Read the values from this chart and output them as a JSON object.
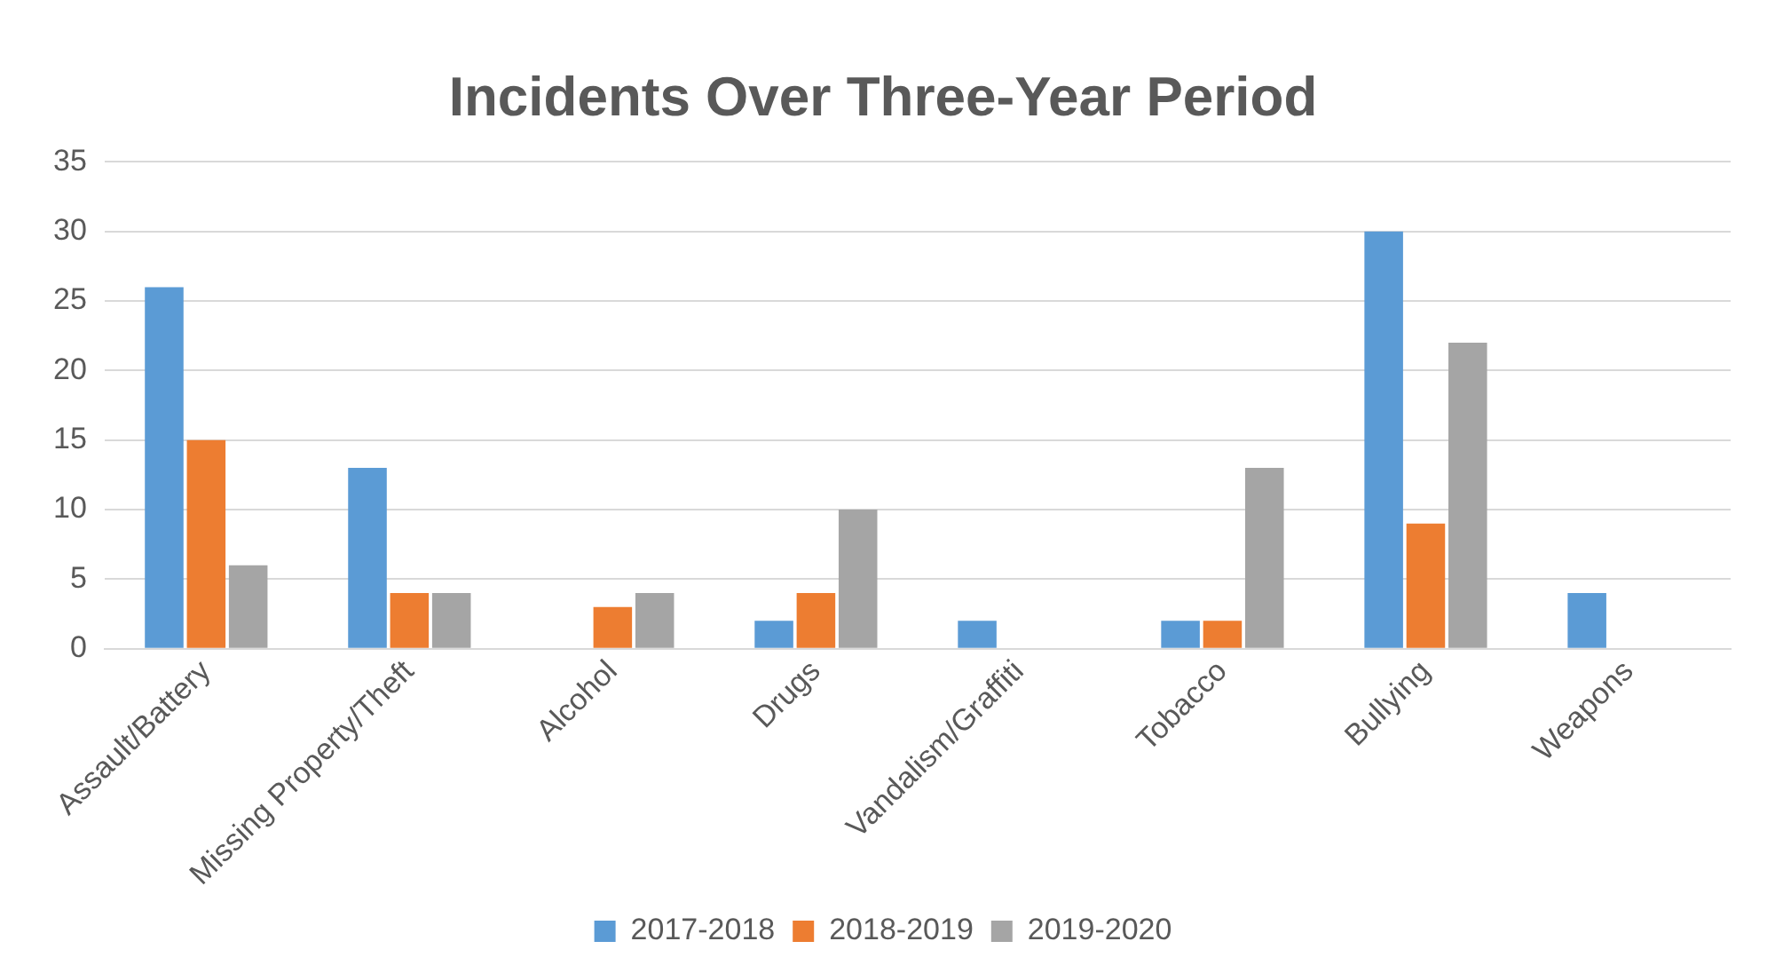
{
  "chart_data": {
    "type": "bar",
    "title": "Incidents Over Three-Year Period",
    "categories": [
      "Assault/Battery",
      "Missing Property/Theft",
      "Alcohol",
      "Drugs",
      "Vandalism/Graffiti",
      "Tobacco",
      "Bullying",
      "Weapons"
    ],
    "series": [
      {
        "name": "2017-2018",
        "color": "#5b9bd5",
        "values": [
          26,
          13,
          0,
          2,
          2,
          2,
          30,
          4
        ]
      },
      {
        "name": "2018-2019",
        "color": "#ed7d31",
        "values": [
          15,
          4,
          3,
          4,
          0,
          2,
          9,
          0
        ]
      },
      {
        "name": "2019-2020",
        "color": "#a5a5a5",
        "values": [
          6,
          4,
          4,
          10,
          0,
          13,
          22,
          0
        ]
      }
    ],
    "ylim": [
      0,
      35
    ],
    "yticks": [
      0,
      5,
      10,
      15,
      20,
      25,
      30,
      35
    ],
    "grid": "y",
    "legend": "bottom"
  }
}
